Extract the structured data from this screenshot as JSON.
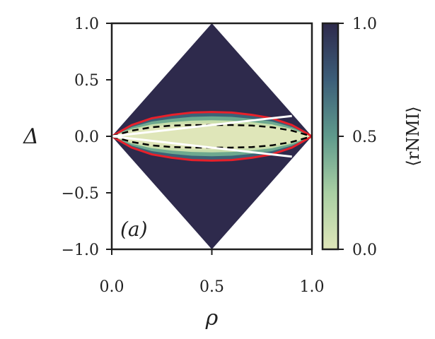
{
  "chart_data": {
    "type": "heatmap",
    "panel_label": "(a)",
    "xlabel": "ρ",
    "ylabel": "Δ",
    "xlim": [
      0.0,
      1.0
    ],
    "ylim": [
      -1.0,
      1.0
    ],
    "x_ticks": [
      0.0,
      0.5,
      1.0
    ],
    "x_tick_labels": [
      "0.0",
      "0.5",
      "1.0"
    ],
    "y_ticks": [
      1.0,
      0.5,
      0.0,
      -0.5,
      -1.0
    ],
    "y_tick_labels": [
      "1.0",
      "0.5",
      "0.0",
      "−0.5",
      "−1.0"
    ],
    "domain": "diamond |Δ| ≤ 2·min(ρ, 1−ρ)",
    "colorbar": {
      "label": "⟨rNMI⟩",
      "range": [
        0.0,
        1.0
      ],
      "ticks": [
        1.0,
        0.5,
        0.0
      ],
      "tick_labels": [
        "1.0",
        "0.5",
        "0.0"
      ],
      "colormap_low": "#dfe6b9",
      "colormap_mid": "#5f9a8c",
      "colormap_high": "#2e2a4c"
    },
    "heatmap_summary": {
      "low_value_band_halfwidth_at_rho_0_5": 0.13,
      "outer_value": 1.0,
      "inner_value": 0.0
    },
    "curves": [
      {
        "style": "solid",
        "color": "#e8202a",
        "description": "red boundary",
        "x": [
          0.0,
          0.1,
          0.2,
          0.3,
          0.4,
          0.5,
          0.6,
          0.7,
          0.8,
          0.9,
          1.0
        ],
        "y_upper": [
          0.0,
          0.1,
          0.16,
          0.19,
          0.21,
          0.215,
          0.21,
          0.19,
          0.16,
          0.1,
          0.0
        ]
      },
      {
        "style": "dashed",
        "color": "#000000",
        "description": "black dashed boundary",
        "x": [
          0.0,
          0.1,
          0.2,
          0.3,
          0.4,
          0.5,
          0.6,
          0.7,
          0.8,
          0.9,
          1.0
        ],
        "y_upper": [
          0.0,
          0.05,
          0.08,
          0.095,
          0.1,
          0.1,
          0.1,
          0.095,
          0.08,
          0.05,
          0.0
        ]
      },
      {
        "style": "solid",
        "color": "#ffffff",
        "description": "white line",
        "x": [
          0.0,
          0.9
        ],
        "y_upper": [
          0.0,
          0.18
        ]
      }
    ]
  }
}
